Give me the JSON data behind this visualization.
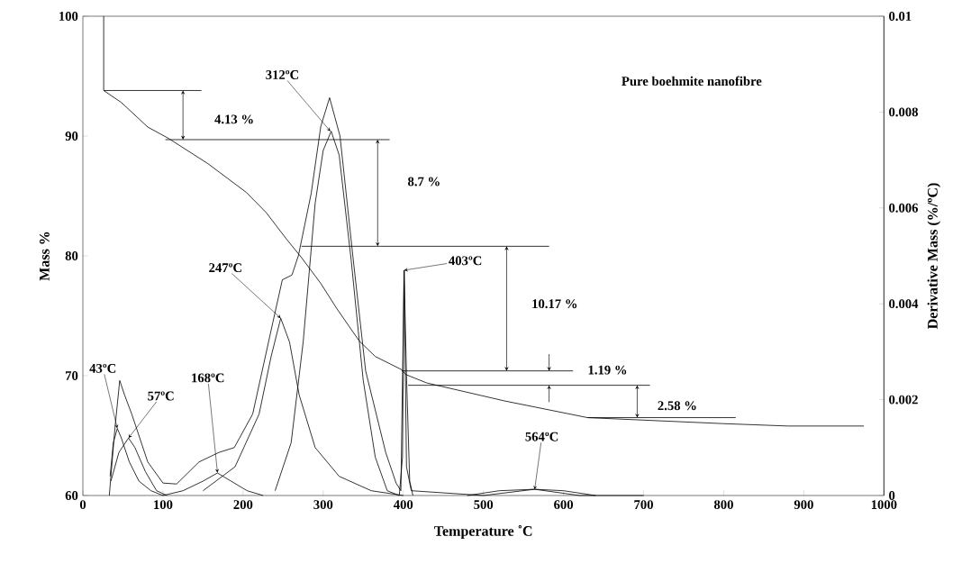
{
  "chart_data": {
    "type": "line",
    "title": "Pure boehmite nanofibre",
    "xlabel": "Temperature ˚C",
    "ylabel": "Mass %",
    "y2label": "Derivative Mass (%/ºC)",
    "xlim": [
      0,
      1000
    ],
    "xticks": [
      0,
      100,
      200,
      300,
      400,
      500,
      600,
      700,
      800,
      900,
      1000
    ],
    "ylim": [
      60,
      100
    ],
    "yticks": [
      60,
      70,
      80,
      90,
      100
    ],
    "y2lim": [
      0,
      0.01
    ],
    "y2ticks": [
      0,
      0.002,
      0.004,
      0.006,
      0.008,
      0.01
    ],
    "series": [
      {
        "color": "#000000",
        "x": [
          26,
          26,
          48,
          81,
          107,
          156,
          204,
          229,
          253,
          273,
          297,
          317,
          345,
          365,
          398,
          403,
          429,
          526,
          630,
          799,
          880,
          975
        ],
        "values": [
          100,
          93.8,
          92.8,
          90.75,
          89.8,
          87.7,
          85.3,
          83.6,
          81.5,
          79.85,
          77.7,
          75.6,
          72.9,
          71.6,
          70.5,
          70.1,
          69.4,
          67.9,
          66.5,
          66.0,
          65.8,
          65.8
        ]
      },
      {
        "color": "#000000",
        "axis": "y2",
        "x": [
          33,
          36,
          40,
          46,
          52,
          61,
          81,
          100,
          117,
          145,
          170,
          189,
          212,
          237,
          249,
          261,
          269,
          285,
          297,
          308,
          321,
          337,
          353,
          378,
          391,
          397,
          401,
          404,
          410,
          500,
          564,
          620,
          700
        ],
        "values": [
          0,
          0.0006,
          0.0014,
          0.0024,
          0.0021,
          0.0017,
          0.0007,
          0.00026,
          0.00024,
          0.0007,
          0.0009,
          0.001,
          0.0017,
          0.0036,
          0.0045,
          0.0046,
          0.005,
          0.0063,
          0.0077,
          0.0083,
          0.0075,
          0.005,
          0.0026,
          0.0009,
          0.00026,
          0.0001,
          0.0047,
          0.0006,
          0.0001,
          0,
          0.00013,
          0,
          0
        ]
      },
      {
        "color": "#000000",
        "axis": "y2",
        "x": [
          34,
          38,
          43,
          48,
          58,
          70,
          85,
          100
        ],
        "values": [
          0.0004,
          0.0011,
          0.0014,
          0.0012,
          0.0007,
          0.0003,
          0.0001,
          0
        ]
      },
      {
        "color": "#000000",
        "axis": "y2",
        "x": [
          35,
          45,
          57,
          65,
          78,
          92,
          105
        ],
        "values": [
          0.0003,
          0.0009,
          0.0012,
          0.001,
          0.0005,
          0.0001,
          0
        ]
      },
      {
        "color": "#000000",
        "axis": "y2",
        "x": [
          100,
          125,
          150,
          168,
          185,
          205,
          225
        ],
        "values": [
          0,
          0.0001,
          0.0003,
          0.00047,
          0.0003,
          0.0001,
          0
        ]
      },
      {
        "color": "#000000",
        "axis": "y2",
        "x": [
          150,
          190,
          220,
          235,
          247,
          258,
          270,
          290,
          320,
          360,
          400
        ],
        "values": [
          0.0001,
          0.0006,
          0.0017,
          0.0029,
          0.0037,
          0.0032,
          0.0021,
          0.001,
          0.0004,
          0.0001,
          0
        ]
      },
      {
        "color": "#000000",
        "axis": "y2",
        "x": [
          240,
          260,
          275,
          290,
          300,
          310,
          320,
          335,
          350,
          365,
          380,
          395
        ],
        "values": [
          0.0001,
          0.0011,
          0.0032,
          0.0061,
          0.0072,
          0.0076,
          0.0071,
          0.0049,
          0.0024,
          0.0008,
          0.0001,
          0
        ]
      },
      {
        "color": "#000000",
        "axis": "y2",
        "x": [
          395,
          399,
          401,
          404,
          408,
          412
        ],
        "values": [
          0,
          0.0008,
          0.0047,
          0.0025,
          0.0003,
          0
        ]
      },
      {
        "color": "#000000",
        "axis": "y2",
        "x": [
          480,
          520,
          564,
          600,
          640
        ],
        "values": [
          0,
          0.0001,
          0.00013,
          0.0001,
          0
        ]
      },
      {
        "color": "#000000",
        "x": [
          26,
          148
        ],
        "values": [
          93.8,
          93.8
        ]
      },
      {
        "color": "#000000",
        "x": [
          103,
          383
        ],
        "values": [
          89.7,
          89.7
        ]
      },
      {
        "color": "#000000",
        "x": [
          273,
          582
        ],
        "values": [
          80.8,
          80.8
        ]
      },
      {
        "color": "#000000",
        "x": [
          398,
          612
        ],
        "values": [
          70.4,
          70.4
        ]
      },
      {
        "color": "#000000",
        "x": [
          406,
          708
        ],
        "values": [
          69.2,
          69.2
        ]
      },
      {
        "color": "#000000",
        "x": [
          630,
          815
        ],
        "values": [
          66.5,
          66.5
        ]
      }
    ],
    "annotations": [
      "4.13 %",
      "8.7 %",
      "10.17 %",
      "1.19 %",
      "2.58 %",
      {
        "text": "43ºC",
        "x": 43,
        "y": 65.6
      },
      {
        "text": "57ºC",
        "x": 57,
        "y": 64.8
      },
      {
        "text": "168ºC",
        "x": 168,
        "y": 61.9
      },
      {
        "text": "247ºC",
        "x": 247,
        "y": 74.8
      },
      {
        "text": "312ºC",
        "x": 309,
        "y": 90.4
      },
      {
        "text": "403ºC",
        "x": 401,
        "y": 78.8
      },
      {
        "text": "564ºC",
        "x": 564,
        "y": 60.5
      }
    ]
  }
}
